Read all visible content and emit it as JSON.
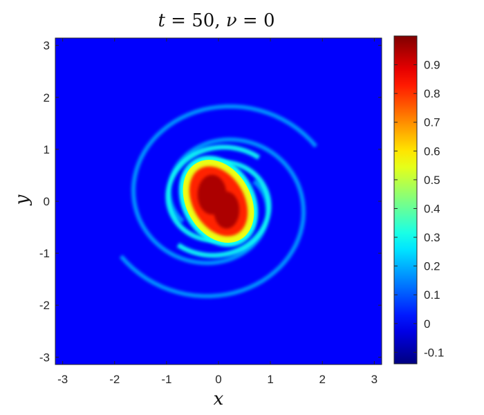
{
  "chart_data": {
    "type": "heatmap",
    "title": "t = 50,  ν = 0",
    "xlabel": "x",
    "ylabel": "y",
    "xlim": [
      -3.14159,
      3.14159
    ],
    "ylim": [
      -3.14159,
      3.14159
    ],
    "x_ticks": [
      -3,
      -2,
      -1,
      0,
      1,
      2,
      3
    ],
    "y_ticks": [
      -3,
      -2,
      -1,
      0,
      1,
      2,
      3
    ],
    "colorbar": {
      "colormap": "jet",
      "clim": [
        -0.14,
        1.0
      ],
      "ticks": [
        -0.1,
        0,
        0.1,
        0.2,
        0.3,
        0.4,
        0.5,
        0.6,
        0.7,
        0.8,
        0.9
      ]
    },
    "background_value": 0.0,
    "features": [
      {
        "name": "core",
        "shape": "tilted ellipse",
        "center": [
          0,
          0
        ],
        "semi_axes": [
          0.62,
          0.85
        ],
        "peak_value": 0.95,
        "edge_value": 0.55
      },
      {
        "name": "inner-arm",
        "shape": "spiral arm",
        "radius_range": [
          0.8,
          1.2
        ],
        "value": 0.3
      },
      {
        "name": "outer-arm",
        "shape": "spiral arm",
        "radius_range": [
          1.2,
          2.2
        ],
        "value": 0.18
      }
    ],
    "grid": false,
    "legend": "colorbar-right"
  }
}
